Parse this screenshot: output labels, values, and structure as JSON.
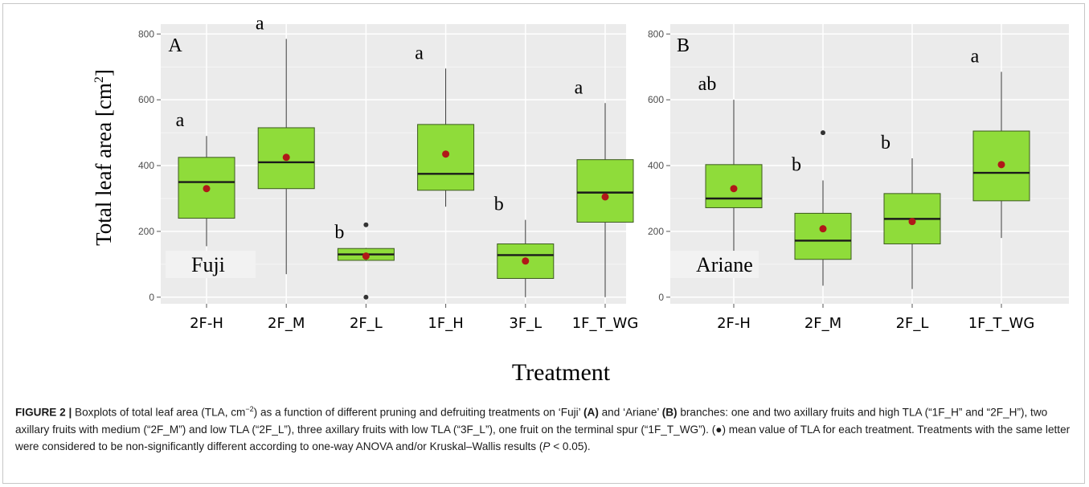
{
  "figure": {
    "ylabel_main": "Total leaf area [cm",
    "ylabel_sup": "2",
    "ylabel_close": "]",
    "xlabel": "Treatment"
  },
  "caption": {
    "label": "FIGURE 2 |",
    "text_1": " Boxplots of total leaf area (TLA, cm",
    "sup": "−2",
    "text_2": ") as a function of different pruning and defruiting treatments on ‘Fuji’ ",
    "bold_a": "(A)",
    "text_3": " and ‘Ariane’ ",
    "bold_b": "(B)",
    "text_4": " branches: one and two axillary fruits and high TLA (“1F_H” and “2F_H”), two axillary fruits with medium (“2F_M”) and low TLA (“2F_L”), three axillary fruits with low TLA (“3F_L”), one fruit on the terminal spur (“1F_T_WG”). (●) mean value of TLA for each treatment. Treatments with the same letter were considered to be non-significantly different according to one-way ANOVA and/or Kruskal–Wallis results (",
    "italic_p": "P",
    "text_5": " < 0.05)."
  },
  "colors": {
    "panel_bg": "#ebebeb",
    "grid": "#ffffff",
    "box_fill": "#8fdc3a",
    "box_stroke": "#3c5a1e",
    "mean": "#b01818"
  },
  "chart_data": [
    {
      "type": "box",
      "panel_letter": "A",
      "cultivar": "Fuji",
      "ylim": [
        -20,
        830
      ],
      "yticks": [
        0,
        200,
        400,
        600,
        800
      ],
      "categories": [
        "2F-H",
        "2F_M",
        "2F_L",
        "1F_H",
        "3F_L",
        "1F_T_WG"
      ],
      "boxes": [
        {
          "whisker_low": 155,
          "q1": 240,
          "median": 350,
          "q3": 425,
          "whisker_high": 490,
          "mean": 330,
          "outliers": [],
          "letter": "a"
        },
        {
          "whisker_low": 70,
          "q1": 330,
          "median": 410,
          "q3": 515,
          "whisker_high": 785,
          "mean": 425,
          "outliers": [],
          "letter": "a"
        },
        {
          "whisker_low": 110,
          "q1": 112,
          "median": 130,
          "q3": 148,
          "whisker_high": 150,
          "mean": 125,
          "outliers": [
            0,
            220
          ],
          "letter": "b"
        },
        {
          "whisker_low": 275,
          "q1": 325,
          "median": 375,
          "q3": 525,
          "whisker_high": 695,
          "mean": 435,
          "outliers": [],
          "letter": "a"
        },
        {
          "whisker_low": 0,
          "q1": 57,
          "median": 128,
          "q3": 162,
          "whisker_high": 235,
          "mean": 110,
          "outliers": [],
          "letter": "b"
        },
        {
          "whisker_low": 0,
          "q1": 228,
          "median": 318,
          "q3": 418,
          "whisker_high": 590,
          "mean": 305,
          "outliers": [],
          "letter": "a"
        }
      ]
    },
    {
      "type": "box",
      "panel_letter": "B",
      "cultivar": "Ariane",
      "ylim": [
        -20,
        830
      ],
      "yticks": [
        0,
        200,
        400,
        600,
        800
      ],
      "categories": [
        "2F-H",
        "2F_M",
        "2F_L",
        "1F_T_WG"
      ],
      "boxes": [
        {
          "whisker_low": 110,
          "q1": 272,
          "median": 300,
          "q3": 403,
          "whisker_high": 600,
          "mean": 330,
          "outliers": [],
          "letter": "ab"
        },
        {
          "whisker_low": 35,
          "q1": 115,
          "median": 172,
          "q3": 255,
          "whisker_high": 355,
          "mean": 208,
          "outliers": [
            500
          ],
          "letter": "b"
        },
        {
          "whisker_low": 25,
          "q1": 162,
          "median": 238,
          "q3": 315,
          "whisker_high": 422,
          "mean": 230,
          "outliers": [],
          "letter": "b"
        },
        {
          "whisker_low": 180,
          "q1": 293,
          "median": 378,
          "q3": 505,
          "whisker_high": 685,
          "mean": 403,
          "outliers": [],
          "letter": "a"
        }
      ]
    }
  ]
}
